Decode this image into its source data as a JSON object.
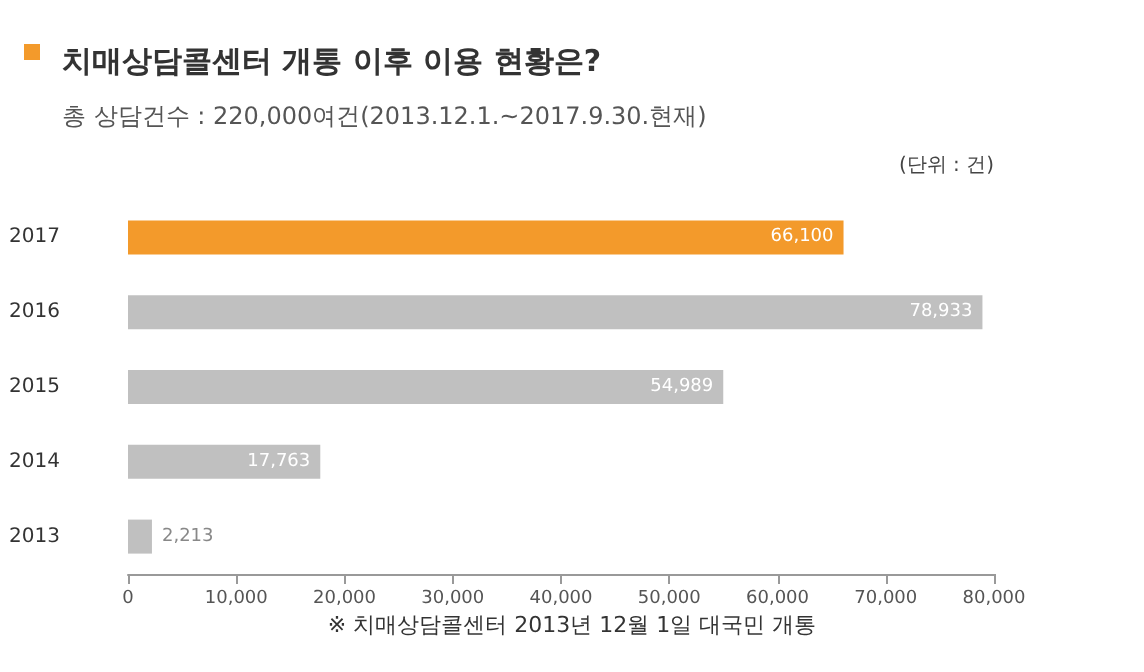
{
  "chart_data": {
    "type": "bar",
    "orientation": "horizontal",
    "title": "치매상담콜센터 개통 이후 이용 현황은?",
    "subtitle": "총 상담건수 : 220,000여건(2013.12.1.~2017.9.30.현재)",
    "annotations": [
      "(단위 : 건)",
      "※ 치매상담콜센터 2013년 12월 1일 대국민 개통"
    ],
    "categories": [
      "2017",
      "2016",
      "2015",
      "2014",
      "2013"
    ],
    "values": [
      66100,
      78933,
      54989,
      17763,
      2213
    ],
    "colors": [
      "#f39a2b",
      "#c0c0c0",
      "#c0c0c0",
      "#c0c0c0",
      "#c0c0c0"
    ],
    "value_labels": [
      "66,100",
      "78,933",
      "54,989",
      "17,763",
      "2,213"
    ],
    "xlim": [
      0,
      80000
    ],
    "xticks": [
      0,
      {
        "value": 10000,
        "label": "10,000"
      },
      {
        "value": 20000,
        "label": "20,000"
      },
      {
        "value": 30000,
        "label": "30,000"
      },
      {
        "value": 40000,
        "label": "40,000"
      },
      {
        "value": 50000,
        "label": "50,000"
      },
      {
        "value": 60000,
        "label": "60,000"
      },
      {
        "value": 70000,
        "label": "70,000"
      },
      {
        "value": 80000,
        "label": "80,000"
      }
    ],
    "grid": false
  }
}
